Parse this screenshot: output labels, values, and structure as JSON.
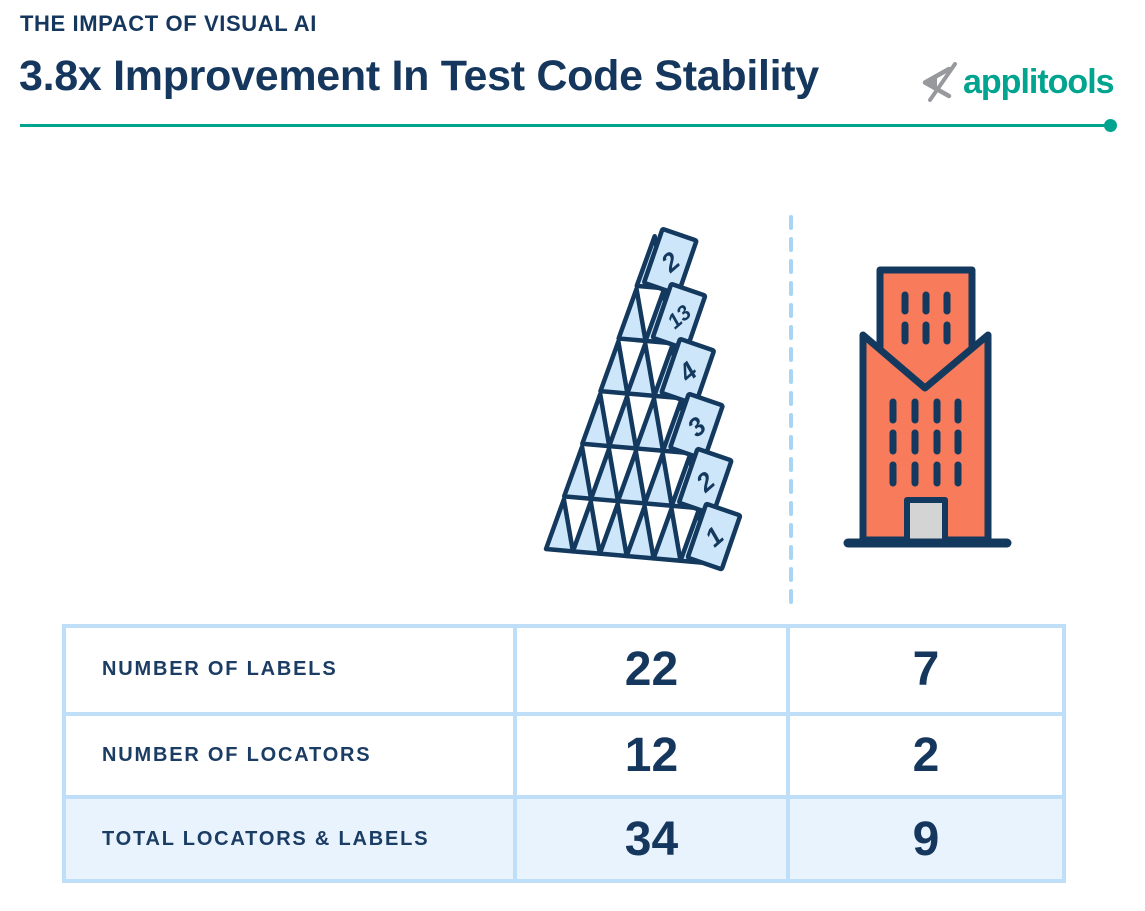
{
  "header": {
    "eyebrow": "THE IMPACT OF VISUAL AI",
    "title": "3.8x Improvement In Test Code Stability",
    "brand": "applitools"
  },
  "colors": {
    "navy": "#15375d",
    "teal": "#00a48f",
    "orange": "#f87c5b",
    "card_blue": "#cde6fa",
    "table_border": "#bfdff8",
    "highlight_row_bg": "#e8f3fd",
    "divider_dash_blue": "#a8d5f4",
    "door_gray": "#d4d4d4",
    "logo_gray": "#97999c"
  },
  "illustrations": {
    "card_tower": {
      "name": "leaning-house-of-cards",
      "levels": 6,
      "card_numbers": [
        "2",
        "13",
        "4",
        "3",
        "2",
        "1"
      ]
    },
    "building": {
      "name": "stable-skyscraper"
    }
  },
  "table": {
    "rows": [
      {
        "label": "NUMBER OF LABELS",
        "before": "22",
        "after": "7"
      },
      {
        "label": "NUMBER OF LOCATORS",
        "before": "12",
        "after": "2"
      },
      {
        "label": "TOTAL LOCATORS & LABELS",
        "before": "34",
        "after": "9"
      }
    ]
  },
  "chart_data": {
    "type": "table",
    "title": "3.8x Improvement In Test Code Stability",
    "subtitle": "THE IMPACT OF VISUAL AI",
    "rows": [
      "NUMBER OF LABELS",
      "NUMBER OF LOCATORS",
      "TOTAL LOCATORS & LABELS"
    ],
    "series": [
      {
        "name": "house-of-cards-column",
        "values": [
          22,
          12,
          34
        ]
      },
      {
        "name": "building-column",
        "values": [
          7,
          2,
          9
        ]
      }
    ]
  }
}
